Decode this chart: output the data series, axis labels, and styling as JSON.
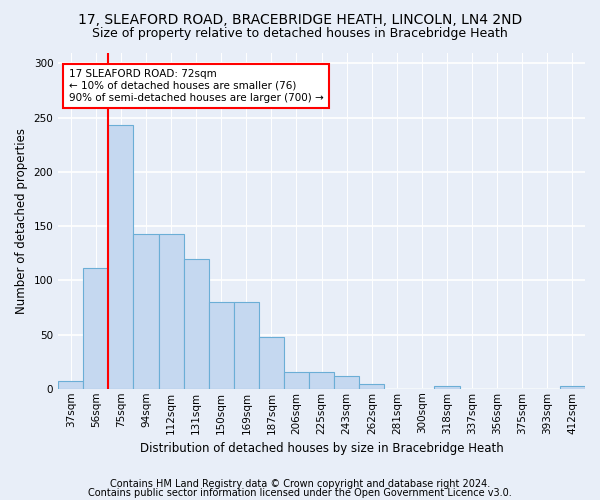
{
  "title1": "17, SLEAFORD ROAD, BRACEBRIDGE HEATH, LINCOLN, LN4 2ND",
  "title2": "Size of property relative to detached houses in Bracebridge Heath",
  "xlabel": "Distribution of detached houses by size in Bracebridge Heath",
  "ylabel": "Number of detached properties",
  "footnote1": "Contains HM Land Registry data © Crown copyright and database right 2024.",
  "footnote2": "Contains public sector information licensed under the Open Government Licence v3.0.",
  "bar_labels": [
    "37sqm",
    "56sqm",
    "75sqm",
    "94sqm",
    "112sqm",
    "131sqm",
    "150sqm",
    "169sqm",
    "187sqm",
    "206sqm",
    "225sqm",
    "243sqm",
    "262sqm",
    "281sqm",
    "300sqm",
    "318sqm",
    "337sqm",
    "356sqm",
    "375sqm",
    "393sqm",
    "412sqm"
  ],
  "bar_values": [
    7,
    111,
    243,
    143,
    143,
    120,
    80,
    80,
    48,
    15,
    15,
    12,
    4,
    0,
    0,
    3,
    0,
    0,
    0,
    0,
    3
  ],
  "bar_color": "#c5d8f0",
  "bar_edge_color": "#6baed6",
  "vline_x": 2.0,
  "vline_color": "red",
  "annotation_text": "17 SLEAFORD ROAD: 72sqm\n← 10% of detached houses are smaller (76)\n90% of semi-detached houses are larger (700) →",
  "annotation_box_color": "white",
  "annotation_box_edge": "red",
  "ylim": [
    0,
    310
  ],
  "background_color": "#e8eef8",
  "grid_color": "#ffffff",
  "title1_fontsize": 10,
  "title2_fontsize": 9,
  "axis_label_fontsize": 8.5,
  "tick_fontsize": 7.5,
  "footnote_fontsize": 7
}
